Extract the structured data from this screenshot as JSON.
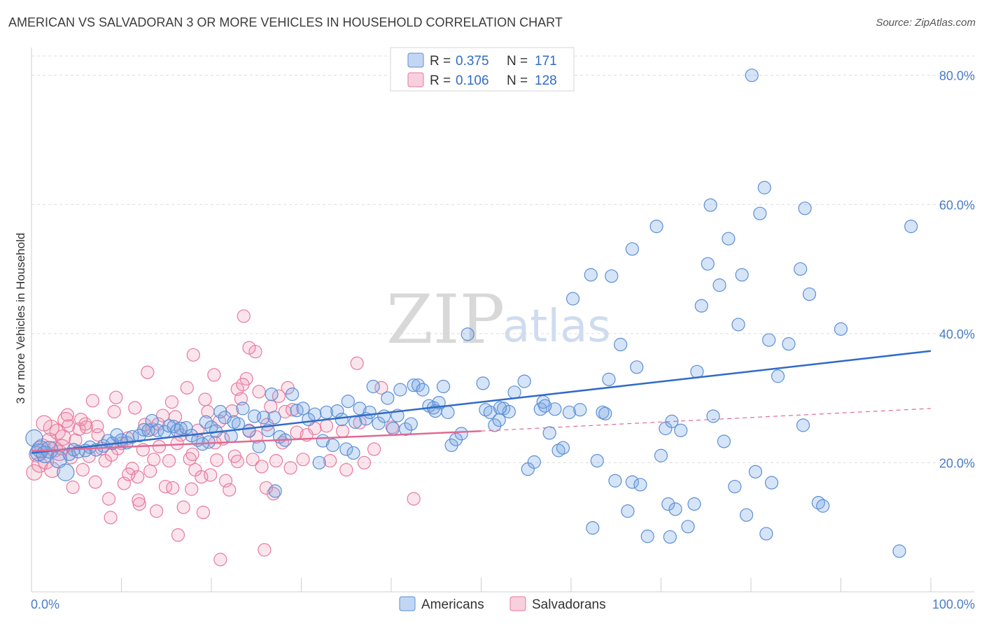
{
  "title": "AMERICAN VS SALVADORAN 3 OR MORE VEHICLES IN HOUSEHOLD CORRELATION CHART",
  "source": "Source: ZipAtlas.com",
  "watermark": {
    "zip": "ZIP",
    "atlas": "atlas"
  },
  "colors": {
    "blue": "#5b8fd6",
    "blue_fill": "rgba(120,165,230,0.30)",
    "pink": "#e8799c",
    "pink_fill": "rgba(240,150,180,0.25)",
    "blue_line": "#2f6bc7",
    "pink_line": "#e06a92"
  },
  "legend": {
    "r_label": "R =",
    "n_label": "N =",
    "rows": [
      {
        "r": "0.375",
        "n": "171",
        "color": "blue"
      },
      {
        "r": "0.106",
        "n": "128",
        "color": "pink"
      }
    ]
  },
  "bottom_legend": [
    "Americans",
    "Salvadorans"
  ],
  "chart_data": {
    "type": "scatter",
    "title": "AMERICAN VS SALVADORAN 3 OR MORE VEHICLES IN HOUSEHOLD CORRELATION CHART",
    "xlabel": "",
    "ylabel": "3 or more Vehicles in Household",
    "xlim": [
      0,
      100
    ],
    "ylim": [
      0,
      83
    ],
    "x_tick_labels": [
      "0.0%",
      "100.0%"
    ],
    "y_ticks": [
      20,
      40,
      60,
      80
    ],
    "y_tick_labels": [
      "20.0%",
      "40.0%",
      "60.0%",
      "80.0%"
    ],
    "grid": true,
    "legend_position": "top-center",
    "series": [
      {
        "name": "Americans",
        "color": "blue",
        "trend": {
          "x": [
            0,
            100
          ],
          "y": [
            21.5,
            37.3
          ]
        },
        "points": [
          [
            0.3,
            23.8
          ],
          [
            0.8,
            21.6
          ],
          [
            1.0,
            22.1
          ],
          [
            1.5,
            21.3
          ],
          [
            2.0,
            22.0
          ],
          [
            3.0,
            20.5
          ],
          [
            3.8,
            18.5
          ],
          [
            4.2,
            21.3
          ],
          [
            4.7,
            22.0
          ],
          [
            5.2,
            21.7
          ],
          [
            6.0,
            21.9
          ],
          [
            6.5,
            22.4
          ],
          [
            7.2,
            22.0
          ],
          [
            8.0,
            22.6
          ],
          [
            8.5,
            23.4
          ],
          [
            9.0,
            23.0
          ],
          [
            9.5,
            24.3
          ],
          [
            10.0,
            23.5
          ],
          [
            10.6,
            23.1
          ],
          [
            11.2,
            24.0
          ],
          [
            12.0,
            24.2
          ],
          [
            12.5,
            25.1
          ],
          [
            13.0,
            25.0
          ],
          [
            13.4,
            26.5
          ],
          [
            14.0,
            25.0
          ],
          [
            14.8,
            24.8
          ],
          [
            15.3,
            25.7
          ],
          [
            15.8,
            25.6
          ],
          [
            16.2,
            25.0
          ],
          [
            16.6,
            25.3
          ],
          [
            17.2,
            25.4
          ],
          [
            17.8,
            24.2
          ],
          [
            18.5,
            23.5
          ],
          [
            19.0,
            22.9
          ],
          [
            19.4,
            26.3
          ],
          [
            20.0,
            25.5
          ],
          [
            20.5,
            24.9
          ],
          [
            21.0,
            27.9
          ],
          [
            21.5,
            27.0
          ],
          [
            22.2,
            24.1
          ],
          [
            22.5,
            26.3
          ],
          [
            23.0,
            26.0
          ],
          [
            23.5,
            28.4
          ],
          [
            24.2,
            24.9
          ],
          [
            24.8,
            27.2
          ],
          [
            25.3,
            22.5
          ],
          [
            25.8,
            27.0
          ],
          [
            26.3,
            25.0
          ],
          [
            27.0,
            27.0
          ],
          [
            27.6,
            24.0
          ],
          [
            28.2,
            23.5
          ],
          [
            29.0,
            30.6
          ],
          [
            29.5,
            28.1
          ],
          [
            30.2,
            28.4
          ],
          [
            30.8,
            26.7
          ],
          [
            31.5,
            27.5
          ],
          [
            32.0,
            20.0
          ],
          [
            32.4,
            23.4
          ],
          [
            32.8,
            27.8
          ],
          [
            33.5,
            22.7
          ],
          [
            34.0,
            28.0
          ],
          [
            34.5,
            26.7
          ],
          [
            35.0,
            22.1
          ],
          [
            35.2,
            29.5
          ],
          [
            35.8,
            21.5
          ],
          [
            36.0,
            26.3
          ],
          [
            36.5,
            28.4
          ],
          [
            37.2,
            26.8
          ],
          [
            37.6,
            27.8
          ],
          [
            38.0,
            31.8
          ],
          [
            38.6,
            26.1
          ],
          [
            39.2,
            27.2
          ],
          [
            39.6,
            30.0
          ],
          [
            40.2,
            25.3
          ],
          [
            40.7,
            27.3
          ],
          [
            41.0,
            31.3
          ],
          [
            41.6,
            25.2
          ],
          [
            42.2,
            26.0
          ],
          [
            42.5,
            32.0
          ],
          [
            43.0,
            32.0
          ],
          [
            43.5,
            31.3
          ],
          [
            44.2,
            28.8
          ],
          [
            44.7,
            28.5
          ],
          [
            44.9,
            28.0
          ],
          [
            45.3,
            29.3
          ],
          [
            45.8,
            31.8
          ],
          [
            46.3,
            27.8
          ],
          [
            46.7,
            22.7
          ],
          [
            47.2,
            23.6
          ],
          [
            47.8,
            24.5
          ],
          [
            48.5,
            39.9
          ],
          [
            50.2,
            32.3
          ],
          [
            50.5,
            28.2
          ],
          [
            51.0,
            27.8
          ],
          [
            51.5,
            25.8
          ],
          [
            52.0,
            26.6
          ],
          [
            52.5,
            28.4
          ],
          [
            53.1,
            27.9
          ],
          [
            53.7,
            30.9
          ],
          [
            54.8,
            32.6
          ],
          [
            55.2,
            19.0
          ],
          [
            55.9,
            20.1
          ],
          [
            56.6,
            28.3
          ],
          [
            56.9,
            29.4
          ],
          [
            57.6,
            24.6
          ],
          [
            58.2,
            28.3
          ],
          [
            58.6,
            21.9
          ],
          [
            59.1,
            22.3
          ],
          [
            59.8,
            27.8
          ],
          [
            60.2,
            45.4
          ],
          [
            61.0,
            28.2
          ],
          [
            62.2,
            49.1
          ],
          [
            62.4,
            9.9
          ],
          [
            62.9,
            20.3
          ],
          [
            63.5,
            27.8
          ],
          [
            63.8,
            27.6
          ],
          [
            64.2,
            32.9
          ],
          [
            64.5,
            48.9
          ],
          [
            64.9,
            17.2
          ],
          [
            65.5,
            38.3
          ],
          [
            66.3,
            12.5
          ],
          [
            66.8,
            53.1
          ],
          [
            66.8,
            17.0
          ],
          [
            67.3,
            34.8
          ],
          [
            67.7,
            16.6
          ],
          [
            68.5,
            8.6
          ],
          [
            69.5,
            56.6
          ],
          [
            70.0,
            21.1
          ],
          [
            70.5,
            25.3
          ],
          [
            70.8,
            13.6
          ],
          [
            71.2,
            26.4
          ],
          [
            71.6,
            12.8
          ],
          [
            72.2,
            25.0
          ],
          [
            73.0,
            10.1
          ],
          [
            73.7,
            13.6
          ],
          [
            74.0,
            34.1
          ],
          [
            74.5,
            44.3
          ],
          [
            75.2,
            50.8
          ],
          [
            75.5,
            59.9
          ],
          [
            75.8,
            27.2
          ],
          [
            76.5,
            47.5
          ],
          [
            77.0,
            23.3
          ],
          [
            77.5,
            54.7
          ],
          [
            78.2,
            16.3
          ],
          [
            78.6,
            41.4
          ],
          [
            79.0,
            49.1
          ],
          [
            79.5,
            11.9
          ],
          [
            80.1,
            80.0
          ],
          [
            80.5,
            18.6
          ],
          [
            81.0,
            58.6
          ],
          [
            81.5,
            62.6
          ],
          [
            82.0,
            39.0
          ],
          [
            82.3,
            16.9
          ],
          [
            83.0,
            33.4
          ],
          [
            84.2,
            38.4
          ],
          [
            85.5,
            50.0
          ],
          [
            85.8,
            25.8
          ],
          [
            86.0,
            59.4
          ],
          [
            86.5,
            46.1
          ],
          [
            87.5,
            13.8
          ],
          [
            88.0,
            13.3
          ],
          [
            90.0,
            40.7
          ],
          [
            96.5,
            6.3
          ],
          [
            97.8,
            56.6
          ],
          [
            26.7,
            30.6
          ],
          [
            19.7,
            23.2
          ],
          [
            27.1,
            15.6
          ],
          [
            52.1,
            28.5
          ],
          [
            57.1,
            28.8
          ],
          [
            81.7,
            9.0
          ],
          [
            71.0,
            8.5
          ]
        ]
      },
      {
        "name": "Salvadorans",
        "color": "pink",
        "trend": {
          "x": [
            0,
            50
          ],
          "y": [
            21.8,
            24.9
          ]
        },
        "trend_dashed": {
          "x": [
            50,
            100
          ],
          "y": [
            24.9,
            28.4
          ]
        },
        "points": [
          [
            0.3,
            18.5
          ],
          [
            0.6,
            21.3
          ],
          [
            0.9,
            19.7
          ],
          [
            1.2,
            22.5
          ],
          [
            1.6,
            20.2
          ],
          [
            2.0,
            23.4
          ],
          [
            2.3,
            18.9
          ],
          [
            2.6,
            22.1
          ],
          [
            2.9,
            24.8
          ],
          [
            3.1,
            21.5
          ],
          [
            3.5,
            23.9
          ],
          [
            3.8,
            26.6
          ],
          [
            4.1,
            25.7
          ],
          [
            4.4,
            20.8
          ],
          [
            4.6,
            16.2
          ],
          [
            4.9,
            23.5
          ],
          [
            5.3,
            25.2
          ],
          [
            5.7,
            18.9
          ],
          [
            6.0,
            26.0
          ],
          [
            6.4,
            21.0
          ],
          [
            6.8,
            29.6
          ],
          [
            7.1,
            17.0
          ],
          [
            7.4,
            24.3
          ],
          [
            7.8,
            22.2
          ],
          [
            8.2,
            20.3
          ],
          [
            8.6,
            14.4
          ],
          [
            8.8,
            11.5
          ],
          [
            9.2,
            27.9
          ],
          [
            9.6,
            22.2
          ],
          [
            10.0,
            23.0
          ],
          [
            10.3,
            16.8
          ],
          [
            10.7,
            23.8
          ],
          [
            11.2,
            19.1
          ],
          [
            11.5,
            28.5
          ],
          [
            11.8,
            17.8
          ],
          [
            12.0,
            13.6
          ],
          [
            12.4,
            22.0
          ],
          [
            12.9,
            34.0
          ],
          [
            13.2,
            18.7
          ],
          [
            13.6,
            20.5
          ],
          [
            13.9,
            12.5
          ],
          [
            14.2,
            22.5
          ],
          [
            14.6,
            27.3
          ],
          [
            14.9,
            16.3
          ],
          [
            15.3,
            20.3
          ],
          [
            15.6,
            29.4
          ],
          [
            16.0,
            27.1
          ],
          [
            16.3,
            8.8
          ],
          [
            16.6,
            24.3
          ],
          [
            16.9,
            13.1
          ],
          [
            17.3,
            31.6
          ],
          [
            17.6,
            20.6
          ],
          [
            17.9,
            21.3
          ],
          [
            18.2,
            18.9
          ],
          [
            18.5,
            25.0
          ],
          [
            18.9,
            17.8
          ],
          [
            19.3,
            29.8
          ],
          [
            19.6,
            27.9
          ],
          [
            19.9,
            18.1
          ],
          [
            20.3,
            33.6
          ],
          [
            20.6,
            20.4
          ],
          [
            20.9,
            26.4
          ],
          [
            21.3,
            23.7
          ],
          [
            21.6,
            17.2
          ],
          [
            22.0,
            15.8
          ],
          [
            22.3,
            28.0
          ],
          [
            22.6,
            21.0
          ],
          [
            22.9,
            31.4
          ],
          [
            23.3,
            29.9
          ],
          [
            23.6,
            42.7
          ],
          [
            23.9,
            33.0
          ],
          [
            24.2,
            25.0
          ],
          [
            24.6,
            20.5
          ],
          [
            24.9,
            37.2
          ],
          [
            25.3,
            31.0
          ],
          [
            25.6,
            19.4
          ],
          [
            25.9,
            6.5
          ],
          [
            26.2,
            25.9
          ],
          [
            26.6,
            28.7
          ],
          [
            26.9,
            15.2
          ],
          [
            27.2,
            20.3
          ],
          [
            27.5,
            30.3
          ],
          [
            28.2,
            27.9
          ],
          [
            28.5,
            31.6
          ],
          [
            29.0,
            28.2
          ],
          [
            29.5,
            24.7
          ],
          [
            30.2,
            20.5
          ],
          [
            31.5,
            25.3
          ],
          [
            32.8,
            25.7
          ],
          [
            34.6,
            24.9
          ],
          [
            35.0,
            18.9
          ],
          [
            36.5,
            26.2
          ],
          [
            37.0,
            20.0
          ],
          [
            38.1,
            22.1
          ],
          [
            38.9,
            31.6
          ],
          [
            40.1,
            25.5
          ],
          [
            42.5,
            14.4
          ],
          [
            13.4,
            25.2
          ],
          [
            16.2,
            23.0
          ],
          [
            9.4,
            30.1
          ],
          [
            15.7,
            16.1
          ],
          [
            20.4,
            23.1
          ],
          [
            21.0,
            5.0
          ],
          [
            24.2,
            37.8
          ],
          [
            7.3,
            25.6
          ],
          [
            11.9,
            14.2
          ],
          [
            3.4,
            22.4
          ],
          [
            5.5,
            26.7
          ],
          [
            8.9,
            21.2
          ],
          [
            14.1,
            26.0
          ],
          [
            12.6,
            25.9
          ],
          [
            17.8,
            15.9
          ],
          [
            19.1,
            12.3
          ],
          [
            22.9,
            20.2
          ],
          [
            26.1,
            16.1
          ],
          [
            28.8,
            19.2
          ],
          [
            33.2,
            20.3
          ],
          [
            36.2,
            35.4
          ],
          [
            6.1,
            25.5
          ],
          [
            10.8,
            18.2
          ],
          [
            2.2,
            25.4
          ],
          [
            4.0,
            27.4
          ],
          [
            1.4,
            26.1
          ],
          [
            18.0,
            36.7
          ],
          [
            23.5,
            32.1
          ],
          [
            25.0,
            24.0
          ],
          [
            27.9,
            23.1
          ],
          [
            30.6,
            24.3
          ]
        ]
      }
    ]
  }
}
